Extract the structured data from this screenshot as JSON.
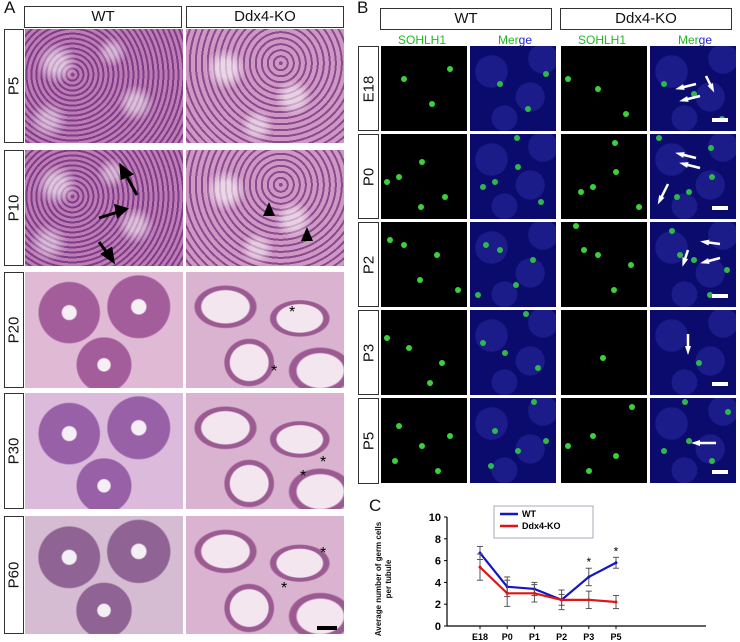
{
  "panel_a": {
    "letter": "A",
    "columns": [
      "WT",
      "Ddx4-KO"
    ],
    "rows": [
      "P5",
      "P10",
      "P20",
      "P30",
      "P60"
    ]
  },
  "panel_b": {
    "letter": "B",
    "groups": [
      "WT",
      "Ddx4-KO"
    ],
    "subheaders": {
      "sohlh1": "SOHLH1",
      "merge_a": "Mer",
      "merge_b": "ge"
    },
    "rows": [
      "E18",
      "P0",
      "P2",
      "P3",
      "P5"
    ]
  },
  "panel_c": {
    "letter": "C"
  },
  "chart_data": {
    "type": "line",
    "ylabel": "Average number of germ cells per tubule",
    "xlabel": "",
    "categories": [
      "E18",
      "P0",
      "P1",
      "P2",
      "P3",
      "P5"
    ],
    "ylim": [
      0,
      10
    ],
    "yticks": [
      "0",
      "2",
      "4",
      "6",
      "8",
      "10"
    ],
    "series": [
      {
        "name": "WT",
        "color": "#1414c8",
        "values": [
          6.7,
          3.6,
          3.4,
          2.4,
          4.5,
          5.8
        ],
        "errors": [
          0.6,
          0.9,
          0.6,
          0.5,
          0.8,
          0.5
        ]
      },
      {
        "name": "Ddx4-KO",
        "color": "#e01414",
        "values": [
          5.4,
          3.0,
          3.0,
          2.4,
          2.4,
          2.2
        ],
        "errors": [
          1.2,
          1.2,
          0.8,
          0.9,
          0.8,
          0.6
        ]
      }
    ],
    "significance_marks": [
      {
        "category": "P3",
        "label": "*"
      },
      {
        "category": "P5",
        "label": "*"
      }
    ],
    "legend_position": "top"
  }
}
